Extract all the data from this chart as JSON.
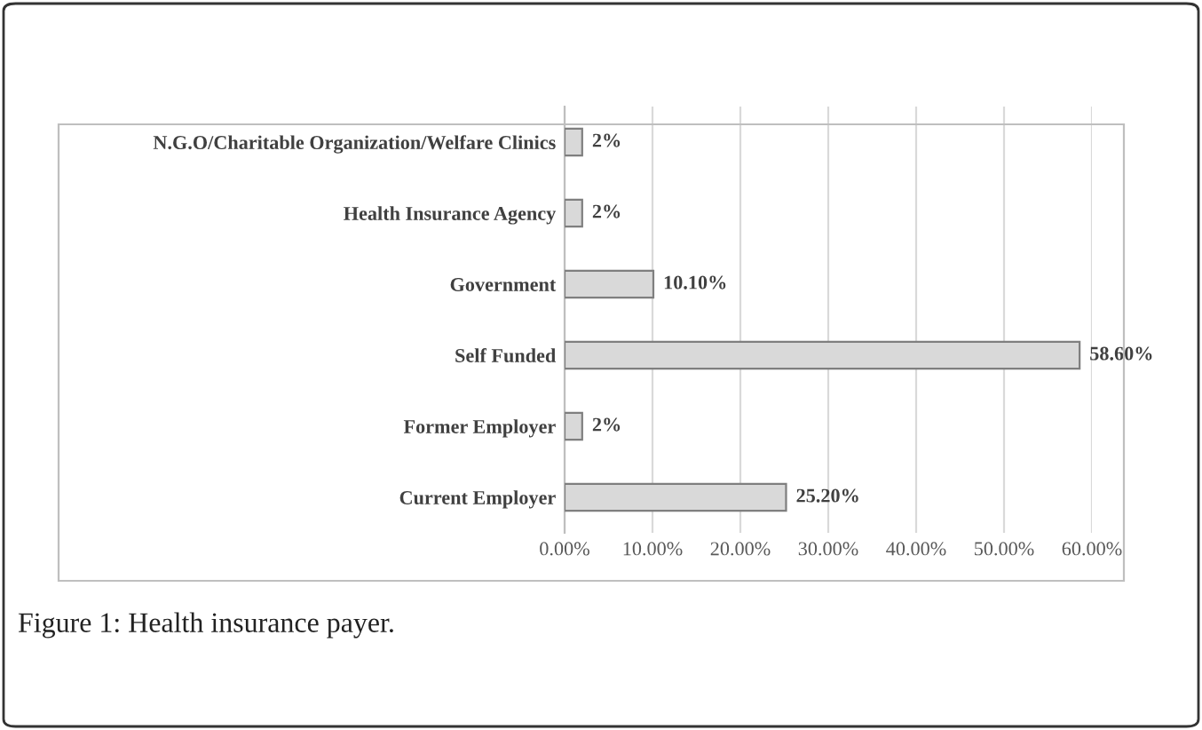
{
  "chart_data": {
    "type": "bar",
    "orientation": "horizontal",
    "categories": [
      "N.G.O/Charitable Organization/Welfare Clinics",
      "Health Insurance Agency",
      "Government",
      "Self Funded",
      "Former Employer",
      "Current Employer"
    ],
    "values": [
      2,
      2,
      10.1,
      58.6,
      2,
      25.2
    ],
    "value_labels": [
      "2%",
      "2%",
      "10.10%",
      "58.60%",
      "2%",
      "25.20%"
    ],
    "color": "#d9d9d9",
    "xlim": [
      0,
      60
    ],
    "xticks": [
      {
        "value": 0,
        "label": "0.00%"
      },
      {
        "value": 10,
        "label": "10.00%"
      },
      {
        "value": 20,
        "label": "20.00%"
      },
      {
        "value": 30,
        "label": "30.00%"
      },
      {
        "value": 40,
        "label": "40.00%"
      },
      {
        "value": 50,
        "label": "50.00%"
      },
      {
        "value": 60,
        "label": "60.00%"
      }
    ],
    "grid": "x",
    "annotations": [
      "Figure 1: Health insurance payer."
    ]
  }
}
